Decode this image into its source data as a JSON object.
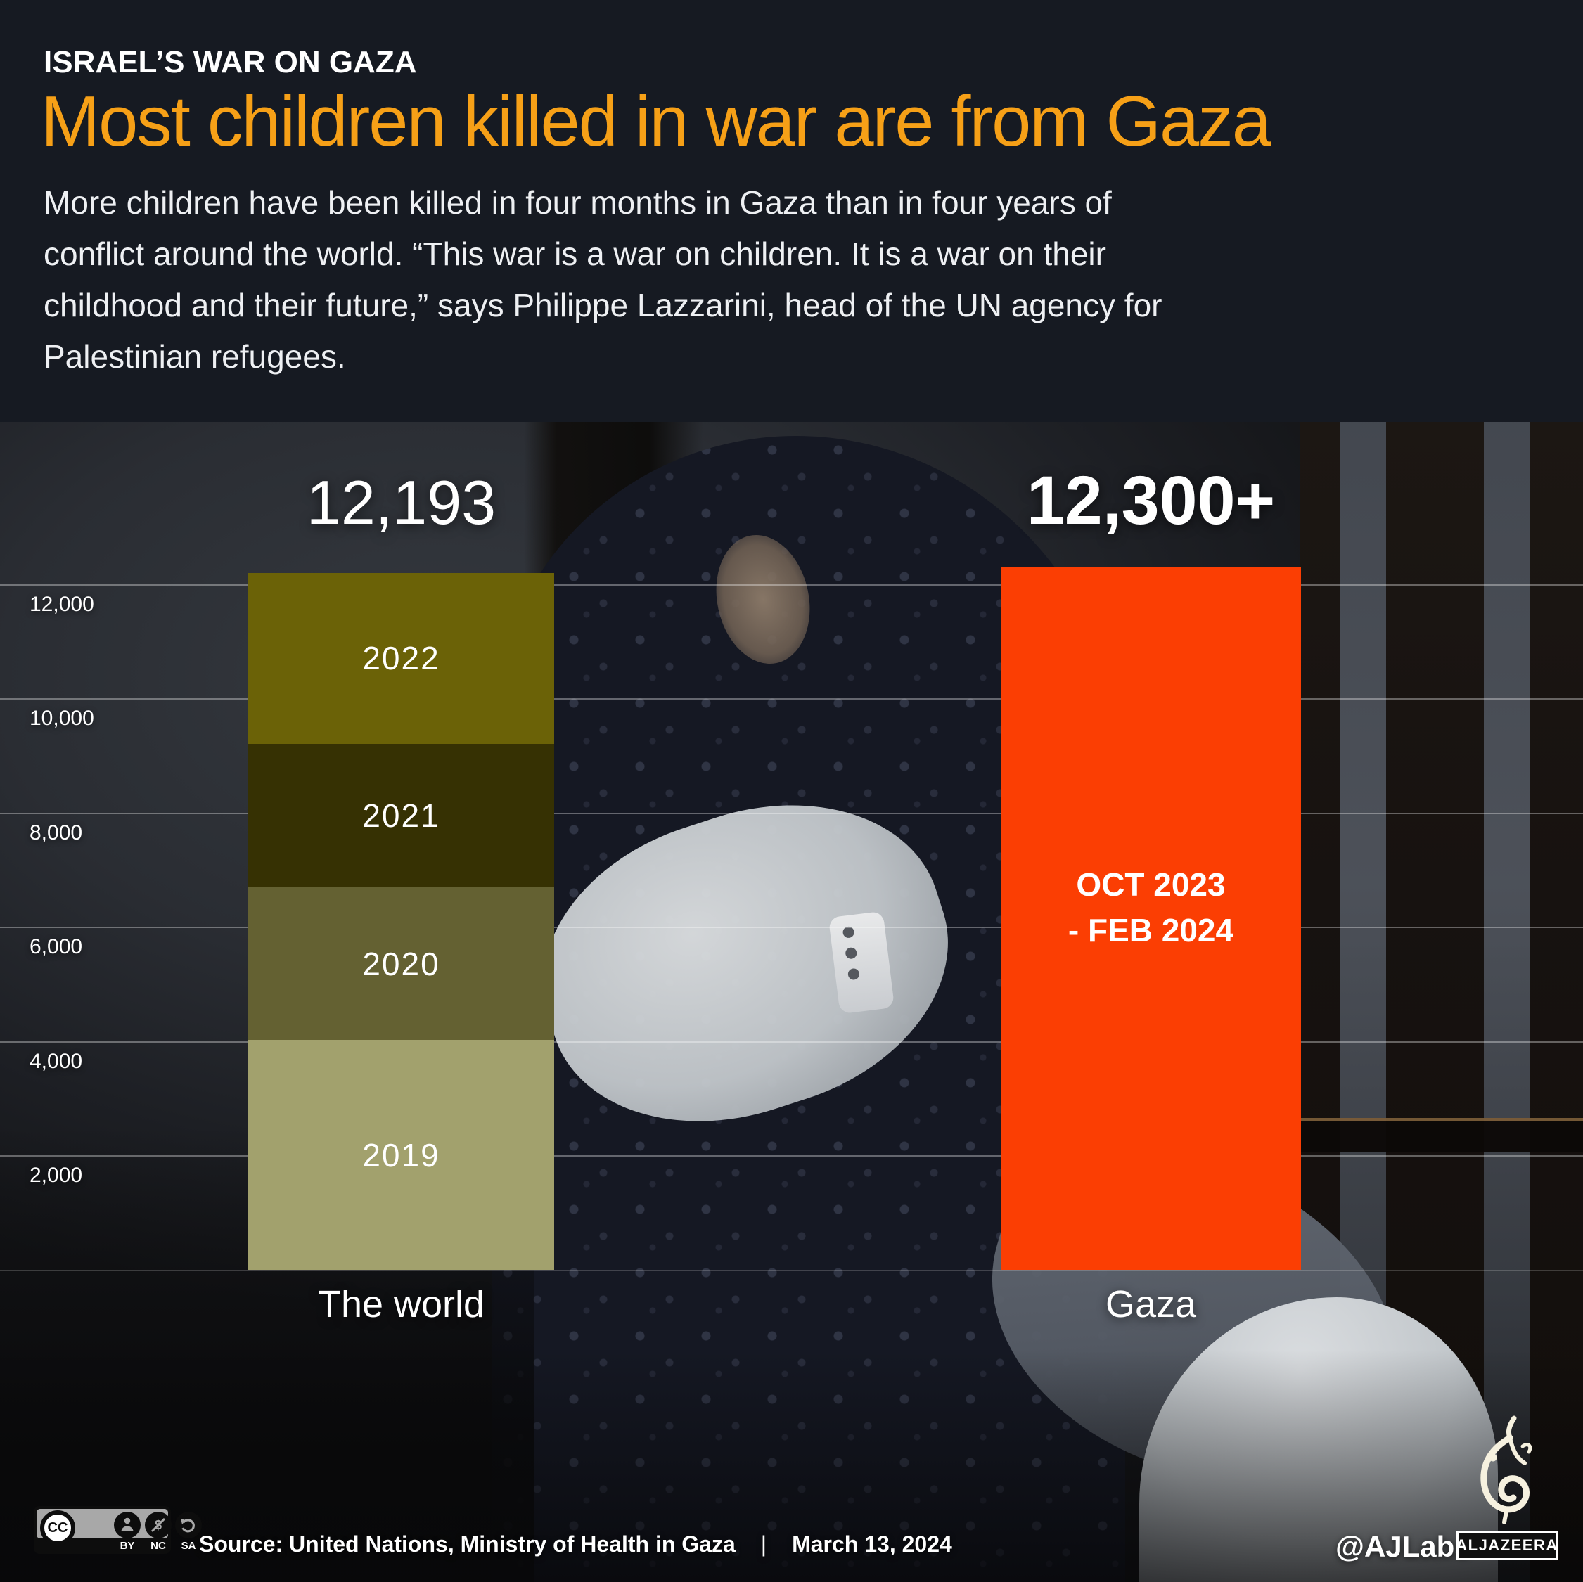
{
  "header": {
    "kicker": "ISRAEL’S WAR ON GAZA",
    "title": "Most children killed in war are from Gaza",
    "description_lines": [
      "More children have been killed in four months in Gaza than in four years of",
      "conflict around the world. “This war is a war on children. It is a war on their",
      "childhood and their future,” says Philippe Lazzarini, head of the UN agency for",
      "Palestinian refugees."
    ]
  },
  "chart_data": {
    "type": "bar",
    "subtype": "stacked_bar_comparison",
    "categories": [
      "The world",
      "Gaza"
    ],
    "ylim": [
      0,
      12300
    ],
    "grid": true,
    "y_axis": {
      "ticks": [
        12000,
        10000,
        8000,
        6000,
        4000,
        2000
      ],
      "tick_labels": [
        "12,000",
        "10,000",
        "8,000",
        "6,000",
        "4,000",
        "2,000"
      ]
    },
    "world": {
      "label": "The world",
      "total": 12193,
      "total_label": "12,193",
      "segments": [
        {
          "year": "2022",
          "value": 2985,
          "color": "#6b6207"
        },
        {
          "year": "2021",
          "value": 2515,
          "color": "#363103"
        },
        {
          "year": "2020",
          "value": 2674,
          "color": "#646132"
        },
        {
          "year": "2019",
          "value": 4019,
          "color": "#a2a16d"
        }
      ]
    },
    "gaza": {
      "label": "Gaza",
      "value": 12300,
      "value_label": "12,300+",
      "period_lines": [
        "OCT 2023",
        "- FEB 2024"
      ],
      "color": "#fb3e03"
    }
  },
  "footer": {
    "license": {
      "cc": "CC",
      "labels": [
        "BY",
        "NC",
        "SA"
      ]
    },
    "source": "Source: United Nations, Ministry of Health in Gaza",
    "divider": "|",
    "date": "March 13, 2024",
    "credit": "@AJLabs",
    "brand": "ALJAZEERA"
  },
  "colors": {
    "accent_orange": "#f6a017",
    "gaza_red": "#fb3e03",
    "header_bg": "#161a22",
    "gridline": "rgba(255,255,255,0.34)"
  }
}
